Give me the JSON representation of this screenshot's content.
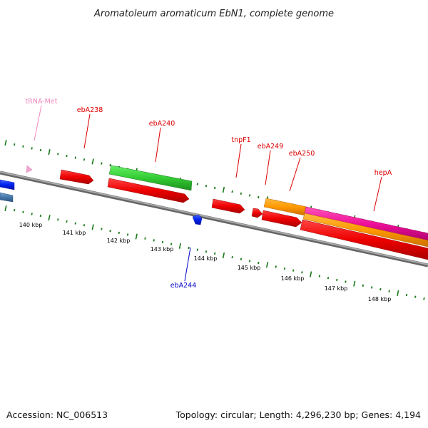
{
  "title": "Aromatoleum aromaticum EbN1, complete genome",
  "footer": {
    "accession": "Accession: NC_006513",
    "summary": "Topology: circular; Length: 4,296,230 bp; Genes: 4,194"
  },
  "colors": {
    "background": "#ffffff",
    "backbone": "#888888",
    "tick_mark": "#1a7a1a",
    "label_red": "#dd0000",
    "label_blue": "#0000cc",
    "label_pink": "#ee88bb",
    "gene_red": "#ee0000",
    "gene_green": "#33cc33",
    "gene_orange": "#ff9900",
    "gene_magenta": "#ee1199",
    "gene_blue": "#0022ee",
    "gene_steelblue": "#4477aa"
  },
  "scale_labels": [
    "140 kbp",
    "141 kbp",
    "142 kbp",
    "143 kbp",
    "144 kbp",
    "145 kbp",
    "146 kbp",
    "147 kbp",
    "148 kbp"
  ],
  "gene_labels": {
    "trna_met": "tRNA-Met",
    "eba238": "ebA238",
    "eba240": "ebA240",
    "tnpf1": "tnpF1",
    "eba249": "ebA249",
    "eba250": "ebA250",
    "hepa": "hepA",
    "eba244": "ebA244"
  },
  "features": [
    {
      "name": "tRNA-Met",
      "strand": "forward",
      "color": "pink"
    },
    {
      "name": "ebA238",
      "strand": "forward",
      "color": "red"
    },
    {
      "name": "ebA240",
      "strand": "forward",
      "color": "red"
    },
    {
      "name": "tnpF1",
      "strand": "forward",
      "color": "red"
    },
    {
      "name": "ebA249",
      "strand": "forward",
      "color": "red"
    },
    {
      "name": "ebA250",
      "strand": "forward",
      "color": "red"
    },
    {
      "name": "hepA",
      "strand": "forward",
      "color": "red"
    },
    {
      "name": "ebA244",
      "strand": "reverse",
      "color": "blue"
    }
  ]
}
